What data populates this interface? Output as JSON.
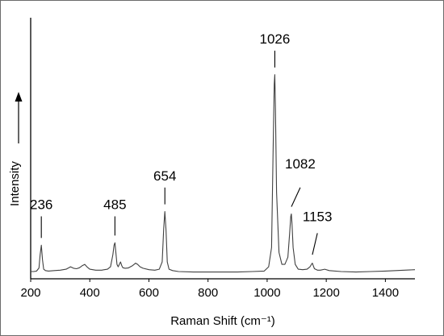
{
  "chart_data": {
    "type": "line",
    "title": "",
    "xlabel": "Raman Shift (cm⁻¹)",
    "ylabel": "Intensity",
    "ylabel_arrow": "→",
    "xlim": [
      200,
      1500
    ],
    "ylim": [
      0,
      1
    ],
    "x_ticks": [
      200,
      400,
      600,
      800,
      1000,
      1200,
      1400
    ],
    "x_tick_labels": [
      "200",
      "400",
      "600",
      "800",
      "1000",
      "1200",
      "1400"
    ],
    "grid": false,
    "series": [
      {
        "color": "#404040",
        "x": [
          200,
          210,
          220,
          228,
          232,
          236,
          240,
          244,
          250,
          260,
          280,
          300,
          320,
          335,
          345,
          355,
          365,
          375,
          383,
          392,
          400,
          420,
          440,
          460,
          470,
          478,
          482,
          485,
          488,
          492,
          496,
          500,
          504,
          508,
          512,
          520,
          530,
          545,
          555,
          562,
          570,
          580,
          600,
          620,
          635,
          645,
          650,
          654,
          658,
          662,
          668,
          680,
          700,
          750,
          800,
          850,
          900,
          950,
          990,
          1005,
          1015,
          1020,
          1024,
          1026,
          1028,
          1032,
          1040,
          1050,
          1060,
          1070,
          1076,
          1080,
          1082,
          1084,
          1088,
          1095,
          1105,
          1120,
          1135,
          1145,
          1150,
          1153,
          1156,
          1160,
          1170,
          1180,
          1195,
          1210,
          1250,
          1300,
          1350,
          1400,
          1450,
          1500
        ],
        "y": [
          0.02,
          0.02,
          0.022,
          0.035,
          0.09,
          0.13,
          0.07,
          0.03,
          0.024,
          0.022,
          0.024,
          0.026,
          0.03,
          0.04,
          0.034,
          0.032,
          0.036,
          0.045,
          0.05,
          0.038,
          0.03,
          0.026,
          0.026,
          0.03,
          0.04,
          0.09,
          0.13,
          0.14,
          0.1,
          0.05,
          0.04,
          0.05,
          0.06,
          0.045,
          0.036,
          0.034,
          0.035,
          0.045,
          0.055,
          0.05,
          0.04,
          0.034,
          0.028,
          0.026,
          0.03,
          0.06,
          0.2,
          0.27,
          0.19,
          0.06,
          0.03,
          0.024,
          0.02,
          0.018,
          0.018,
          0.018,
          0.018,
          0.02,
          0.022,
          0.04,
          0.12,
          0.5,
          0.8,
          0.84,
          0.7,
          0.35,
          0.1,
          0.05,
          0.05,
          0.08,
          0.18,
          0.25,
          0.26,
          0.22,
          0.12,
          0.05,
          0.03,
          0.028,
          0.03,
          0.04,
          0.05,
          0.055,
          0.045,
          0.032,
          0.026,
          0.026,
          0.03,
          0.024,
          0.02,
          0.018,
          0.02,
          0.022,
          0.025,
          0.028
        ]
      }
    ],
    "annotations": [
      {
        "text": "236",
        "x": 236,
        "peak_y": 0.13,
        "line_from_y": 0.16,
        "line_to_y": 0.25,
        "label_y": 0.28,
        "label_x": 236
      },
      {
        "text": "485",
        "x": 485,
        "peak_y": 0.14,
        "line_from_y": 0.17,
        "line_to_y": 0.25,
        "label_y": 0.28,
        "label_x": 485
      },
      {
        "text": "654",
        "x": 654,
        "peak_y": 0.27,
        "line_from_y": 0.3,
        "line_to_y": 0.37,
        "label_y": 0.4,
        "label_x": 654
      },
      {
        "text": "1026",
        "x": 1026,
        "peak_y": 0.84,
        "line_from_y": 0.87,
        "line_to_y": 0.94,
        "label_y": 0.97,
        "label_x": 1026
      },
      {
        "text": "1082",
        "x": 1082,
        "peak_y": 0.26,
        "line_from_y": 0.29,
        "line_to_y": 0.37,
        "label_y": 0.45,
        "label_x": 1112
      },
      {
        "text": "1153",
        "x": 1153,
        "peak_y": 0.055,
        "line_from_y": 0.09,
        "line_to_y": 0.18,
        "label_y": 0.23,
        "label_x": 1170
      }
    ]
  }
}
